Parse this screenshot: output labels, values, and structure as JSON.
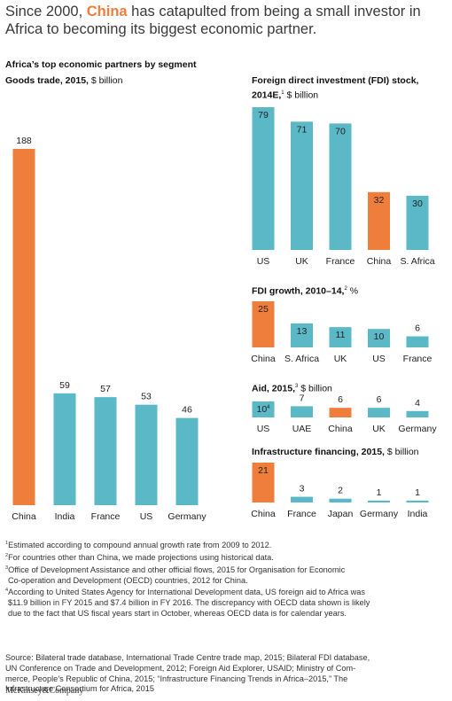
{
  "title": {
    "part1": "Since 2000, ",
    "highlight": "China",
    "part2": " has catapulted from being a small investor in Africa to becoming its biggest economic partner."
  },
  "subhead": "Africa’s top economic partners by segment",
  "colors": {
    "teal": "#5ab8c7",
    "orange": "#ef7d3c",
    "text": "#222222"
  },
  "chart_data": [
    {
      "type": "bar",
      "title_bold": "Goods trade, 2015,",
      "title_rest": " $ billion",
      "categories": [
        "China",
        "India",
        "France",
        "US",
        "Germany"
      ],
      "values": [
        188,
        59,
        57,
        53,
        46
      ],
      "value_labels": [
        "188",
        "59",
        "57",
        "53",
        "46"
      ],
      "highlight": [
        0
      ],
      "ylim": [
        0,
        188
      ]
    },
    {
      "type": "bar",
      "title_bold": "Foreign direct investment (FDI) stock, 2014E,",
      "title_sup": "1",
      "title_rest": " $ billion",
      "categories": [
        "US",
        "UK",
        "France",
        "China",
        "S. Africa"
      ],
      "values": [
        79,
        71,
        70,
        32,
        30
      ],
      "value_labels": [
        "79",
        "71",
        "70",
        "32",
        "30"
      ],
      "highlight": [
        3
      ],
      "ylim": [
        0,
        79
      ]
    },
    {
      "type": "bar",
      "title_bold": "FDI growth, 2010–14,",
      "title_sup": "2",
      "title_rest": " %",
      "categories": [
        "China",
        "S. Africa",
        "UK",
        "US",
        "France"
      ],
      "values": [
        25,
        13,
        11,
        10,
        6
      ],
      "value_labels": [
        "25",
        "13",
        "11",
        "10",
        "6"
      ],
      "highlight": [
        0
      ],
      "ylim": [
        0,
        25
      ]
    },
    {
      "type": "bar",
      "title_bold": "Aid, 2015,",
      "title_sup": "3",
      "title_rest": " $ billion",
      "categories": [
        "US",
        "UAE",
        "China",
        "UK",
        "Germany"
      ],
      "values": [
        10,
        7,
        6,
        6,
        4
      ],
      "value_labels": [
        "10",
        "7",
        "6",
        "6",
        "4"
      ],
      "value_sups": [
        "4",
        "",
        "",
        "",
        ""
      ],
      "highlight": [
        2
      ],
      "ylim": [
        0,
        10
      ]
    },
    {
      "type": "bar",
      "title_bold": "Infrastructure financing, 2015,",
      "title_rest": " $ billion",
      "categories": [
        "China",
        "France",
        "Japan",
        "Germany",
        "India"
      ],
      "values": [
        21,
        3,
        2,
        1,
        1
      ],
      "value_labels": [
        "21",
        "3",
        "2",
        "1",
        "1"
      ],
      "highlight": [
        0
      ],
      "ylim": [
        0,
        21
      ]
    }
  ],
  "notes": [
    {
      "sup": "1",
      "text": "Estimated according to compound annual growth rate from 2009 to 2012."
    },
    {
      "sup": "2",
      "text": "For countries other than China, we made projections using historical data."
    },
    {
      "sup": "3",
      "text": "Office of Development Assistance and other official flows, 2015 for Organisation for Economic"
    },
    {
      "sup": "",
      "text": "Co-operation and Development (OECD) countries, 2012 for China."
    },
    {
      "sup": "4",
      "text": "According to United States Agency for International Development data, US foreign aid to Africa was"
    },
    {
      "sup": "",
      "text": "$11.9 billion in FY 2015 and $7.4 billion in FY 2016. The discrepancy with OECD data shown is likely"
    },
    {
      "sup": "",
      "text": "due to the fact that US fiscal years start in October, whereas OECD data is for calendar years."
    }
  ],
  "source": [
    "Source: Bilateral trade database, International Trade Centre trade map, 2015; Bilateral FDI database,",
    "UN Conference on Trade and Development, 2012; Foreign Aid Explorer, USAID; Ministry of Com-",
    "merce, People’s Republic of China, 2015; “Infrastructure Financing Trends in Africa–2015,” The",
    "Infrastructure Consortium for Africa, 2015"
  ],
  "logo": "McKinsey&Company"
}
